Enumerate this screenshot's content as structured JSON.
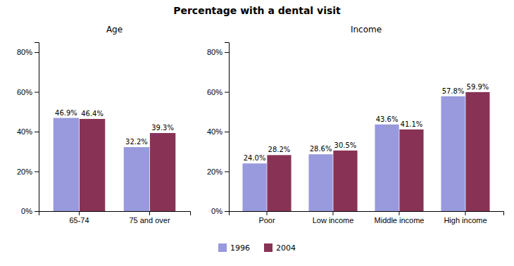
{
  "title": "Percentage with a dental visit",
  "chart_data": [
    {
      "type": "bar",
      "title": "Age",
      "categories": [
        "65-74",
        "75 and over"
      ],
      "series": [
        {
          "name": "1996",
          "color": "#9999dd",
          "values": [
            46.9,
            32.2
          ],
          "value_labels": [
            "46.9%",
            "32.2%"
          ]
        },
        {
          "name": "2004",
          "color": "#883355",
          "values": [
            46.4,
            39.3
          ],
          "value_labels": [
            "46.4%",
            "39.3%"
          ]
        }
      ],
      "ylim": [
        0,
        85
      ],
      "yticks": [
        {
          "value": 0,
          "label": "0%"
        },
        {
          "value": 20,
          "label": "20%"
        },
        {
          "value": 40,
          "label": "40%"
        },
        {
          "value": 60,
          "label": "60%"
        },
        {
          "value": 80,
          "label": "80%"
        }
      ],
      "grid": false,
      "data_labels": true,
      "legend": "bottom"
    },
    {
      "type": "bar",
      "title": "Income",
      "categories": [
        "Poor",
        "Low income",
        "Middle income",
        "High income"
      ],
      "series": [
        {
          "name": "1996",
          "color": "#9999dd",
          "values": [
            24.0,
            28.6,
            43.6,
            57.8
          ],
          "value_labels": [
            "24.0%",
            "28.6%",
            "43.6%",
            "57.8%"
          ]
        },
        {
          "name": "2004",
          "color": "#883355",
          "values": [
            28.2,
            30.5,
            41.1,
            59.9
          ],
          "value_labels": [
            "28.2%",
            "30.5%",
            "41.1%",
            "59.9%"
          ]
        }
      ],
      "ylim": [
        0,
        85
      ],
      "yticks": [
        {
          "value": 0,
          "label": "0%"
        },
        {
          "value": 20,
          "label": "20%"
        },
        {
          "value": 40,
          "label": "40%"
        },
        {
          "value": 60,
          "label": "60%"
        },
        {
          "value": 80,
          "label": "80%"
        }
      ],
      "grid": false,
      "data_labels": true
    }
  ]
}
